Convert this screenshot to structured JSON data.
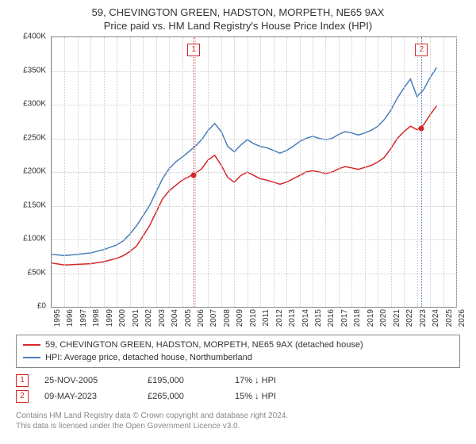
{
  "title": {
    "line1": "59, CHEVINGTON GREEN, HADSTON, MORPETH, NE65 9AX",
    "line2": "Price paid vs. HM Land Registry's House Price Index (HPI)"
  },
  "chart": {
    "type": "line",
    "ylim": [
      0,
      400000
    ],
    "ytick_step": 50000,
    "y_labels": [
      "£0",
      "£50K",
      "£100K",
      "£150K",
      "£200K",
      "£250K",
      "£300K",
      "£350K",
      "£400K"
    ],
    "x_years": [
      1995,
      1996,
      1997,
      1998,
      1999,
      2000,
      2001,
      2002,
      2003,
      2004,
      2005,
      2006,
      2007,
      2008,
      2009,
      2010,
      2011,
      2012,
      2013,
      2014,
      2015,
      2016,
      2017,
      2018,
      2019,
      2020,
      2021,
      2022,
      2023,
      2024,
      2025,
      2026
    ],
    "xlim_years": [
      1995,
      2026
    ],
    "background_color": "#ffffff",
    "grid_color": "#cccccc",
    "axis_color": "#888888",
    "series_property": {
      "color": "#d62728",
      "width": 1.5,
      "data": [
        [
          1995,
          65
        ],
        [
          1996,
          62
        ],
        [
          1997,
          63
        ],
        [
          1998,
          64
        ],
        [
          1999,
          67
        ],
        [
          2000,
          72
        ],
        [
          2000.5,
          76
        ],
        [
          2001,
          82
        ],
        [
          2001.5,
          90
        ],
        [
          2002,
          105
        ],
        [
          2002.5,
          120
        ],
        [
          2003,
          140
        ],
        [
          2003.5,
          160
        ],
        [
          2004,
          172
        ],
        [
          2004.5,
          180
        ],
        [
          2005,
          188
        ],
        [
          2005.5,
          193
        ],
        [
          2006,
          198
        ],
        [
          2006.5,
          205
        ],
        [
          2007,
          218
        ],
        [
          2007.5,
          225
        ],
        [
          2008,
          210
        ],
        [
          2008.5,
          192
        ],
        [
          2009,
          185
        ],
        [
          2009.5,
          195
        ],
        [
          2010,
          200
        ],
        [
          2010.5,
          195
        ],
        [
          2011,
          190
        ],
        [
          2011.5,
          188
        ],
        [
          2012,
          185
        ],
        [
          2012.5,
          182
        ],
        [
          2013,
          185
        ],
        [
          2013.5,
          190
        ],
        [
          2014,
          195
        ],
        [
          2014.5,
          200
        ],
        [
          2015,
          202
        ],
        [
          2015.5,
          200
        ],
        [
          2016,
          198
        ],
        [
          2016.5,
          200
        ],
        [
          2017,
          205
        ],
        [
          2017.5,
          208
        ],
        [
          2018,
          206
        ],
        [
          2018.5,
          204
        ],
        [
          2019,
          207
        ],
        [
          2019.5,
          210
        ],
        [
          2020,
          215
        ],
        [
          2020.5,
          222
        ],
        [
          2021,
          235
        ],
        [
          2021.5,
          250
        ],
        [
          2022,
          260
        ],
        [
          2022.5,
          268
        ],
        [
          2023,
          263
        ],
        [
          2023.5,
          270
        ],
        [
          2024,
          285
        ],
        [
          2024.5,
          298
        ]
      ]
    },
    "series_hpi": {
      "color": "#4a7ebb",
      "width": 1.5,
      "data": [
        [
          1995,
          78
        ],
        [
          1996,
          76
        ],
        [
          1997,
          78
        ],
        [
          1998,
          80
        ],
        [
          1999,
          85
        ],
        [
          2000,
          92
        ],
        [
          2000.5,
          98
        ],
        [
          2001,
          108
        ],
        [
          2001.5,
          120
        ],
        [
          2002,
          135
        ],
        [
          2002.5,
          150
        ],
        [
          2003,
          170
        ],
        [
          2003.5,
          190
        ],
        [
          2004,
          205
        ],
        [
          2004.5,
          215
        ],
        [
          2005,
          222
        ],
        [
          2005.5,
          230
        ],
        [
          2006,
          238
        ],
        [
          2006.5,
          248
        ],
        [
          2007,
          262
        ],
        [
          2007.5,
          272
        ],
        [
          2008,
          260
        ],
        [
          2008.5,
          238
        ],
        [
          2009,
          230
        ],
        [
          2009.5,
          240
        ],
        [
          2010,
          248
        ],
        [
          2010.5,
          242
        ],
        [
          2011,
          238
        ],
        [
          2011.5,
          236
        ],
        [
          2012,
          232
        ],
        [
          2012.5,
          228
        ],
        [
          2013,
          232
        ],
        [
          2013.5,
          238
        ],
        [
          2014,
          245
        ],
        [
          2014.5,
          250
        ],
        [
          2015,
          253
        ],
        [
          2015.5,
          250
        ],
        [
          2016,
          248
        ],
        [
          2016.5,
          250
        ],
        [
          2017,
          256
        ],
        [
          2017.5,
          260
        ],
        [
          2018,
          258
        ],
        [
          2018.5,
          255
        ],
        [
          2019,
          258
        ],
        [
          2019.5,
          262
        ],
        [
          2020,
          268
        ],
        [
          2020.5,
          278
        ],
        [
          2021,
          292
        ],
        [
          2021.5,
          310
        ],
        [
          2022,
          325
        ],
        [
          2022.5,
          338
        ],
        [
          2023,
          312
        ],
        [
          2023.5,
          322
        ],
        [
          2024,
          340
        ],
        [
          2024.5,
          355
        ]
      ]
    },
    "sale_markers": [
      {
        "num": "1",
        "year": 2005.9,
        "price_k": 195,
        "vline_color": "#d62728"
      },
      {
        "num": "2",
        "year": 2023.35,
        "price_k": 265,
        "vline_color": "#4a7ebb"
      }
    ],
    "marker_dot_color": "#d62728",
    "marker_box_border": "#d62728",
    "marker_box_top_offset": 8
  },
  "legend": {
    "border_color": "#888888",
    "items": [
      {
        "color": "#d62728",
        "label": "59, CHEVINGTON GREEN, HADSTON, MORPETH, NE65 9AX (detached house)"
      },
      {
        "color": "#4a7ebb",
        "label": "HPI: Average price, detached house, Northumberland"
      }
    ]
  },
  "sales": [
    {
      "num": "1",
      "date": "25-NOV-2005",
      "price": "£195,000",
      "pct": "17% ↓ HPI",
      "box_color": "#d62728"
    },
    {
      "num": "2",
      "date": "09-MAY-2023",
      "price": "£265,000",
      "pct": "15% ↓ HPI",
      "box_color": "#d62728"
    }
  ],
  "footer": {
    "line1": "Contains HM Land Registry data © Crown copyright and database right 2024.",
    "line2": "This data is licensed under the Open Government Licence v3.0."
  }
}
